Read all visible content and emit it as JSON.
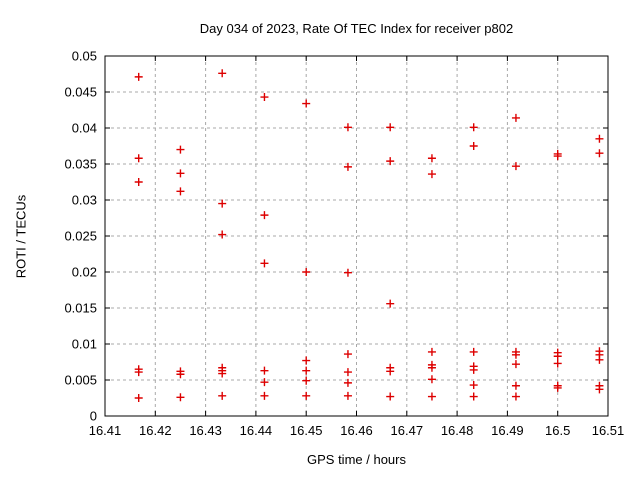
{
  "chart_data": {
    "type": "scatter",
    "title": "Day 034 of 2023, Rate Of TEC Index for receiver p802",
    "xlabel": "GPS time / hours",
    "ylabel": "ROTI / TECUs",
    "xlim": [
      16.41,
      16.51
    ],
    "ylim": [
      0,
      0.05
    ],
    "xticks": [
      16.41,
      16.42,
      16.43,
      16.44,
      16.45,
      16.46,
      16.47,
      16.48,
      16.49,
      16.5,
      16.51
    ],
    "xtick_labels": [
      "16.41",
      "16.42",
      "16.43",
      "16.44",
      "16.45",
      "16.46",
      "16.47",
      "16.48",
      "16.49",
      "16.5",
      "16.51"
    ],
    "yticks": [
      0,
      0.005,
      0.01,
      0.015,
      0.02,
      0.025,
      0.03,
      0.035,
      0.04,
      0.045,
      0.05
    ],
    "ytick_labels": [
      "0",
      "0.005",
      "0.01",
      "0.015",
      "0.02",
      "0.025",
      "0.03",
      "0.035",
      "0.04",
      "0.045",
      "0.05"
    ],
    "grid": true,
    "grid_style": "dashed",
    "grid_color": "#a8a8a8",
    "border_color": "#000000",
    "legend": "none",
    "marker": "plus",
    "marker_color": "#dd0000",
    "series": [
      {
        "name": "ROTI",
        "color": "#dd0000",
        "points": [
          [
            16.4167,
            0.0471
          ],
          [
            16.4167,
            0.0358
          ],
          [
            16.4167,
            0.0325
          ],
          [
            16.4167,
            0.0065
          ],
          [
            16.4167,
            0.0061
          ],
          [
            16.4167,
            0.0025
          ],
          [
            16.425,
            0.037
          ],
          [
            16.425,
            0.0337
          ],
          [
            16.425,
            0.0312
          ],
          [
            16.425,
            0.0062
          ],
          [
            16.425,
            0.0058
          ],
          [
            16.425,
            0.0026
          ],
          [
            16.4333,
            0.0476
          ],
          [
            16.4333,
            0.0295
          ],
          [
            16.4333,
            0.0252
          ],
          [
            16.4333,
            0.0067
          ],
          [
            16.4333,
            0.0063
          ],
          [
            16.4333,
            0.0059
          ],
          [
            16.4333,
            0.0028
          ],
          [
            16.4417,
            0.0443
          ],
          [
            16.4417,
            0.0279
          ],
          [
            16.4417,
            0.0212
          ],
          [
            16.4417,
            0.0063
          ],
          [
            16.4417,
            0.0047
          ],
          [
            16.4417,
            0.0028
          ],
          [
            16.45,
            0.0434
          ],
          [
            16.45,
            0.02
          ],
          [
            16.45,
            0.0077
          ],
          [
            16.45,
            0.0063
          ],
          [
            16.45,
            0.0049
          ],
          [
            16.45,
            0.0028
          ],
          [
            16.4583,
            0.0401
          ],
          [
            16.4583,
            0.0346
          ],
          [
            16.4583,
            0.0199
          ],
          [
            16.4583,
            0.0086
          ],
          [
            16.4583,
            0.0061
          ],
          [
            16.4583,
            0.0046
          ],
          [
            16.4583,
            0.0028
          ],
          [
            16.4667,
            0.0401
          ],
          [
            16.4667,
            0.0354
          ],
          [
            16.4667,
            0.0156
          ],
          [
            16.4667,
            0.0067
          ],
          [
            16.4667,
            0.0062
          ],
          [
            16.4667,
            0.0027
          ],
          [
            16.475,
            0.0358
          ],
          [
            16.475,
            0.0336
          ],
          [
            16.475,
            0.0089
          ],
          [
            16.475,
            0.0071
          ],
          [
            16.475,
            0.0067
          ],
          [
            16.475,
            0.0051
          ],
          [
            16.475,
            0.0027
          ],
          [
            16.4833,
            0.0401
          ],
          [
            16.4833,
            0.0375
          ],
          [
            16.4833,
            0.0089
          ],
          [
            16.4833,
            0.0069
          ],
          [
            16.4833,
            0.0064
          ],
          [
            16.4833,
            0.0043
          ],
          [
            16.4833,
            0.0027
          ],
          [
            16.4917,
            0.0414
          ],
          [
            16.4917,
            0.0347
          ],
          [
            16.4917,
            0.0089
          ],
          [
            16.4917,
            0.0085
          ],
          [
            16.4917,
            0.0072
          ],
          [
            16.4917,
            0.0042
          ],
          [
            16.4917,
            0.0027
          ],
          [
            16.5,
            0.0364
          ],
          [
            16.5,
            0.0361
          ],
          [
            16.5,
            0.0088
          ],
          [
            16.5,
            0.0083
          ],
          [
            16.5,
            0.0073
          ],
          [
            16.5,
            0.0042
          ],
          [
            16.5,
            0.0039
          ],
          [
            16.5083,
            0.0385
          ],
          [
            16.5083,
            0.0365
          ],
          [
            16.5083,
            0.009
          ],
          [
            16.5083,
            0.0085
          ],
          [
            16.5083,
            0.0078
          ],
          [
            16.5083,
            0.0042
          ],
          [
            16.5083,
            0.0037
          ]
        ]
      }
    ]
  }
}
